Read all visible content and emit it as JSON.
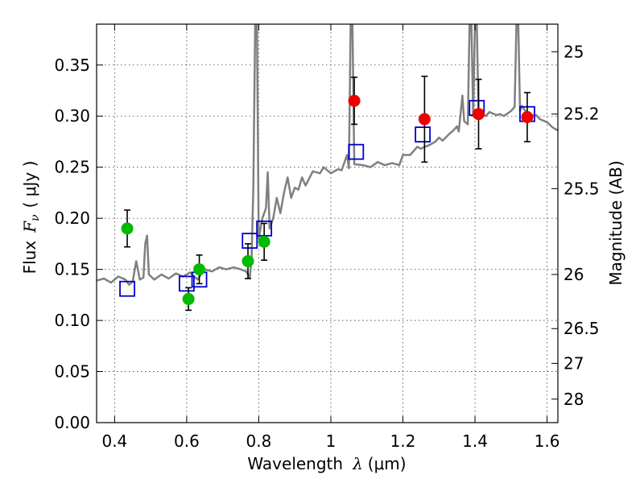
{
  "chart_data": {
    "type": "scatter",
    "xlabel_prefix": "Wavelength",
    "xlabel_symbol": "λ",
    "xlabel_unit": "(μm)",
    "ylabel_prefix": "Flux",
    "ylabel_symbol": "F",
    "ylabel_sub": "ν",
    "ylabel_unit": "( μJy )",
    "y2label": "Magnitude (AB)",
    "xlim": [
      0.35,
      1.63
    ],
    "ylim": [
      0.0,
      0.39
    ],
    "grid": true,
    "xticks": [
      0.4,
      0.6,
      0.8,
      1.0,
      1.2,
      1.4,
      1.6
    ],
    "xtick_labels": [
      "0.4",
      "0.6",
      "0.8",
      "1",
      "1.2",
      "1.4",
      "1.6"
    ],
    "yticks": [
      0.0,
      0.05,
      0.1,
      0.15,
      0.2,
      0.25,
      0.3,
      0.35
    ],
    "ytick_labels": [
      "0.00",
      "0.05",
      "0.10",
      "0.15",
      "0.20",
      "0.25",
      "0.30",
      "0.35"
    ],
    "mag_ticks": [
      {
        "value": 0.363,
        "label": "25"
      },
      {
        "value": 0.302,
        "label": "25.2"
      },
      {
        "value": 0.229,
        "label": "25.5"
      },
      {
        "value": 0.145,
        "label": "26"
      },
      {
        "value": 0.092,
        "label": "26.5"
      },
      {
        "value": 0.058,
        "label": "27"
      },
      {
        "value": 0.023,
        "label": "28"
      }
    ],
    "colors": {
      "spectrum": "#808080",
      "green_points": "#00bb00",
      "red_points": "#ee0000",
      "model_boxes": "#0000cc",
      "errorbars": "#000000"
    },
    "series": [
      {
        "name": "spectrum",
        "kind": "line",
        "points": [
          [
            0.35,
            0.139
          ],
          [
            0.37,
            0.141
          ],
          [
            0.39,
            0.137
          ],
          [
            0.41,
            0.143
          ],
          [
            0.43,
            0.14
          ],
          [
            0.44,
            0.135
          ],
          [
            0.45,
            0.138
          ],
          [
            0.46,
            0.158
          ],
          [
            0.47,
            0.14
          ],
          [
            0.48,
            0.142
          ],
          [
            0.485,
            0.175
          ],
          [
            0.49,
            0.183
          ],
          [
            0.495,
            0.145
          ],
          [
            0.51,
            0.14
          ],
          [
            0.53,
            0.145
          ],
          [
            0.55,
            0.141
          ],
          [
            0.57,
            0.146
          ],
          [
            0.59,
            0.143
          ],
          [
            0.61,
            0.147
          ],
          [
            0.63,
            0.14
          ],
          [
            0.65,
            0.15
          ],
          [
            0.67,
            0.148
          ],
          [
            0.69,
            0.152
          ],
          [
            0.71,
            0.15
          ],
          [
            0.73,
            0.152
          ],
          [
            0.75,
            0.15
          ],
          [
            0.765,
            0.148
          ],
          [
            0.775,
            0.142
          ],
          [
            0.78,
            0.16
          ],
          [
            0.785,
            0.23
          ],
          [
            0.79,
            0.39
          ],
          [
            0.795,
            0.39
          ],
          [
            0.8,
            0.18
          ],
          [
            0.81,
            0.2
          ],
          [
            0.82,
            0.21
          ],
          [
            0.825,
            0.245
          ],
          [
            0.83,
            0.19
          ],
          [
            0.84,
            0.2
          ],
          [
            0.85,
            0.22
          ],
          [
            0.86,
            0.205
          ],
          [
            0.87,
            0.225
          ],
          [
            0.88,
            0.24
          ],
          [
            0.89,
            0.22
          ],
          [
            0.9,
            0.23
          ],
          [
            0.91,
            0.228
          ],
          [
            0.92,
            0.24
          ],
          [
            0.93,
            0.232
          ],
          [
            0.95,
            0.246
          ],
          [
            0.97,
            0.244
          ],
          [
            0.98,
            0.25
          ],
          [
            1.0,
            0.244
          ],
          [
            1.02,
            0.248
          ],
          [
            1.03,
            0.247
          ],
          [
            1.045,
            0.262
          ],
          [
            1.05,
            0.249
          ],
          [
            1.055,
            0.39
          ],
          [
            1.06,
            0.39
          ],
          [
            1.065,
            0.253
          ],
          [
            1.09,
            0.252
          ],
          [
            1.11,
            0.25
          ],
          [
            1.13,
            0.255
          ],
          [
            1.15,
            0.252
          ],
          [
            1.17,
            0.254
          ],
          [
            1.19,
            0.252
          ],
          [
            1.2,
            0.262
          ],
          [
            1.22,
            0.262
          ],
          [
            1.24,
            0.27
          ],
          [
            1.25,
            0.268
          ],
          [
            1.26,
            0.27
          ],
          [
            1.27,
            0.271
          ],
          [
            1.29,
            0.275
          ],
          [
            1.3,
            0.279
          ],
          [
            1.31,
            0.276
          ],
          [
            1.33,
            0.283
          ],
          [
            1.34,
            0.286
          ],
          [
            1.35,
            0.29
          ],
          [
            1.355,
            0.285
          ],
          [
            1.365,
            0.32
          ],
          [
            1.37,
            0.295
          ],
          [
            1.38,
            0.292
          ],
          [
            1.385,
            0.39
          ],
          [
            1.39,
            0.39
          ],
          [
            1.395,
            0.3
          ],
          [
            1.4,
            0.39
          ],
          [
            1.405,
            0.39
          ],
          [
            1.41,
            0.301
          ],
          [
            1.42,
            0.302
          ],
          [
            1.43,
            0.3
          ],
          [
            1.44,
            0.304
          ],
          [
            1.46,
            0.301
          ],
          [
            1.47,
            0.302
          ],
          [
            1.48,
            0.3
          ],
          [
            1.5,
            0.305
          ],
          [
            1.51,
            0.309
          ],
          [
            1.515,
            0.39
          ],
          [
            1.52,
            0.39
          ],
          [
            1.525,
            0.305
          ],
          [
            1.53,
            0.31
          ],
          [
            1.54,
            0.305
          ],
          [
            1.55,
            0.3
          ],
          [
            1.57,
            0.301
          ],
          [
            1.58,
            0.297
          ],
          [
            1.6,
            0.294
          ],
          [
            1.615,
            0.289
          ],
          [
            1.63,
            0.286
          ]
        ]
      },
      {
        "name": "green photometry",
        "kind": "points",
        "color": "#00bb00",
        "points": [
          {
            "x": 0.435,
            "y": 0.19,
            "err": 0.018
          },
          {
            "x": 0.605,
            "y": 0.121,
            "err": 0.011
          },
          {
            "x": 0.635,
            "y": 0.15,
            "err": 0.014
          },
          {
            "x": 0.77,
            "y": 0.158,
            "err": 0.017
          },
          {
            "x": 0.815,
            "y": 0.177,
            "err": 0.018
          }
        ]
      },
      {
        "name": "red photometry",
        "kind": "points",
        "color": "#ee0000",
        "points": [
          {
            "x": 1.065,
            "y": 0.315,
            "err": 0.023
          },
          {
            "x": 1.26,
            "y": 0.297,
            "err": 0.042
          },
          {
            "x": 1.41,
            "y": 0.302,
            "err": 0.034
          },
          {
            "x": 1.545,
            "y": 0.299,
            "err": 0.024
          }
        ]
      },
      {
        "name": "model photometry",
        "kind": "boxes",
        "color": "#0000cc",
        "points": [
          {
            "x": 0.435,
            "y": 0.131
          },
          {
            "x": 0.6,
            "y": 0.136
          },
          {
            "x": 0.635,
            "y": 0.14
          },
          {
            "x": 0.775,
            "y": 0.178
          },
          {
            "x": 0.815,
            "y": 0.19
          },
          {
            "x": 1.07,
            "y": 0.265
          },
          {
            "x": 1.255,
            "y": 0.282
          },
          {
            "x": 1.405,
            "y": 0.308
          },
          {
            "x": 1.545,
            "y": 0.302
          }
        ]
      }
    ]
  }
}
